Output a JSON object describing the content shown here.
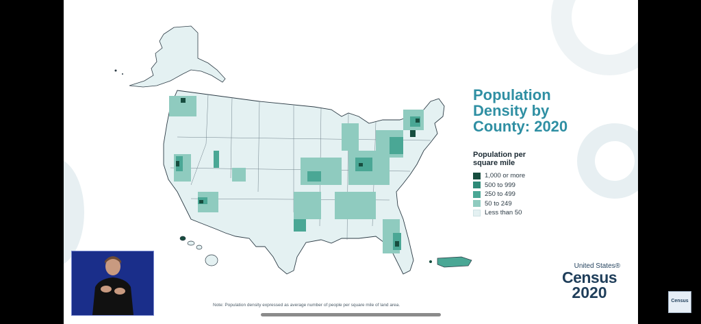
{
  "title": "Population Density by County: 2020",
  "title_lines": [
    "Population",
    "Density by",
    "County: 2020"
  ],
  "legend": {
    "title_lines": [
      "Population per",
      "square mile"
    ],
    "items": [
      {
        "label": "1,000 or more",
        "color": "#174d3f"
      },
      {
        "label": "500 to 999",
        "color": "#2e8a78"
      },
      {
        "label": "250 to 499",
        "color": "#4aa795"
      },
      {
        "label": "50 to 249",
        "color": "#8fcbbf"
      },
      {
        "label": "Less than 50",
        "color": "#e4f1f2"
      }
    ]
  },
  "logo": {
    "line1": "United States®",
    "line2": "Census",
    "line3": "2020"
  },
  "note": "Note: Population density expressed as average number of people per square mile of land area.",
  "mini_logo": "Census",
  "colors": {
    "title": "#2f8fa3",
    "map_base": "#e4f1f2",
    "border": "#2b3a44",
    "slide_bg": "#ffffff",
    "frame_bg": "#000000"
  }
}
